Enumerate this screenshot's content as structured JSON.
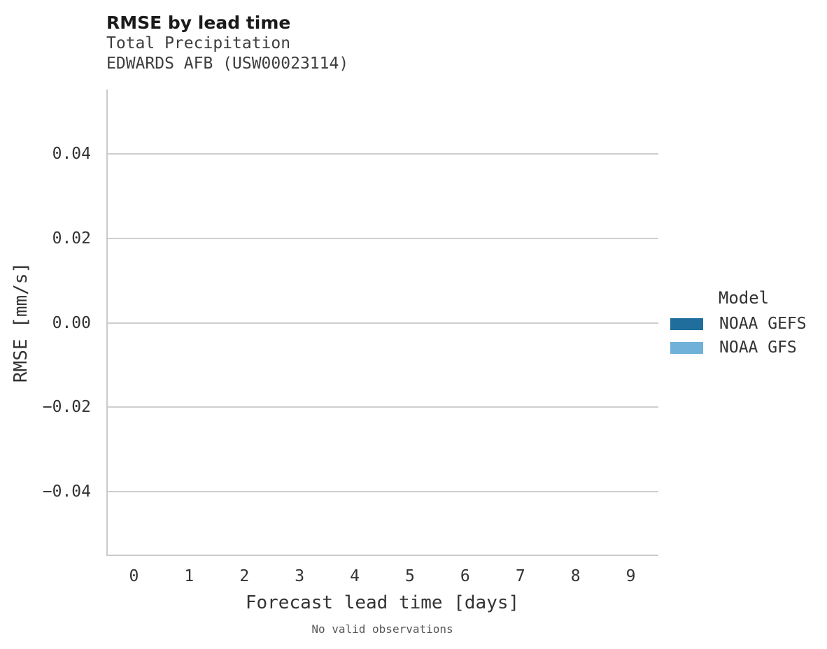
{
  "header": {
    "title": "RMSE by lead time",
    "subtitle_line1": "Total Precipitation",
    "subtitle_line2": "EDWARDS AFB (USW00023114)"
  },
  "chart_data": {
    "type": "line",
    "title": "RMSE by lead time",
    "subtitle": [
      "Total Precipitation",
      "EDWARDS AFB (USW00023114)"
    ],
    "xlabel": "Forecast lead time [days]",
    "ylabel": "RMSE [mm/s]",
    "caption": "No valid observations",
    "x_ticks": [
      0,
      1,
      2,
      3,
      4,
      5,
      6,
      7,
      8,
      9
    ],
    "xlim": [
      -0.5,
      9.5
    ],
    "y_ticks": [
      {
        "value": 0.04,
        "label": "0.04"
      },
      {
        "value": 0.02,
        "label": "0.02"
      },
      {
        "value": 0.0,
        "label": "0.00"
      },
      {
        "value": -0.02,
        "label": "−0.02"
      },
      {
        "value": -0.04,
        "label": "−0.04"
      }
    ],
    "ylim": [
      -0.0553,
      0.0553
    ],
    "grid": {
      "horizontal": true,
      "vertical": false
    },
    "plot_empty_reason": "No valid observations",
    "series": [
      {
        "name": "NOAA GEFS",
        "color": "#1f6e9c",
        "x": [],
        "y": []
      },
      {
        "name": "NOAA GFS",
        "color": "#6fb1d8",
        "x": [],
        "y": []
      }
    ],
    "legend": {
      "title": "Model",
      "position": "right",
      "entries": [
        {
          "label": "NOAA GEFS",
          "color": "#1f6e9c"
        },
        {
          "label": "NOAA GFS",
          "color": "#6fb1d8"
        }
      ]
    },
    "colors": {
      "grid": "#cecece",
      "spine": "#cbcbcb",
      "title_text": "#1a1a1a",
      "subtitle_text": "#3d3d3d",
      "tick_text": "#333333",
      "caption_text": "#555555"
    }
  }
}
